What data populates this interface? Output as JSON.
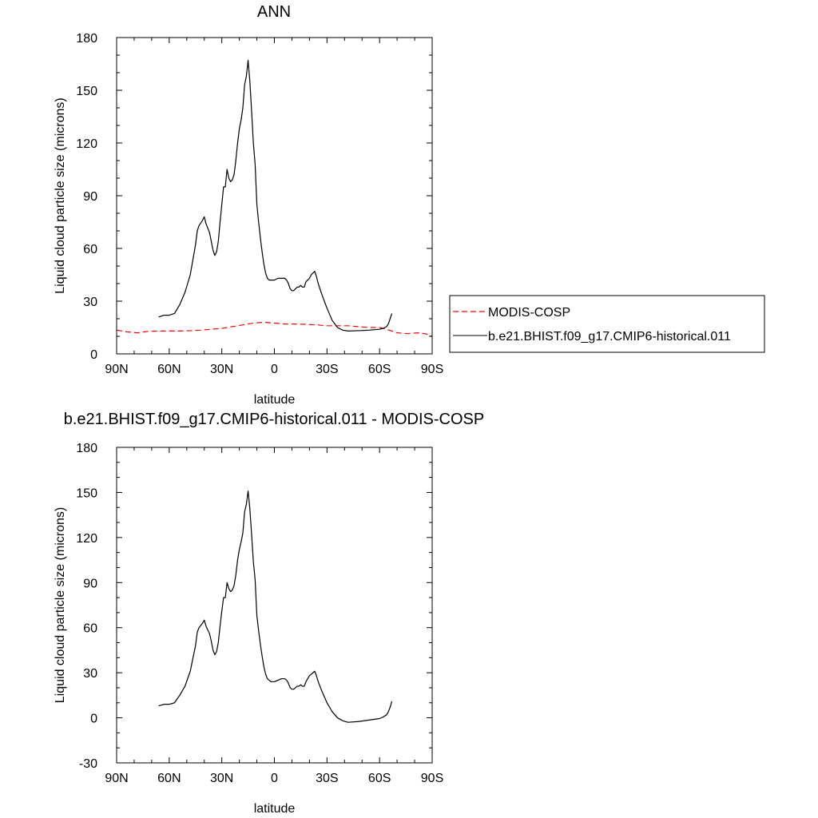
{
  "chart_data": [
    {
      "type": "line",
      "title": "ANN",
      "xlabel": "latitude",
      "ylabel": "Liquid cloud particle size (microns)",
      "xlim": [
        90,
        -90
      ],
      "ylim": [
        0,
        180
      ],
      "xticks": [
        90,
        60,
        30,
        0,
        -30,
        -60,
        -90
      ],
      "xtick_labels": [
        "90N",
        "60N",
        "30N",
        "0",
        "30S",
        "60S",
        "90S"
      ],
      "yticks": [
        0,
        30,
        60,
        90,
        120,
        150,
        180
      ],
      "ytick_labels": [
        "0",
        "30",
        "60",
        "90",
        "120",
        "150",
        "180"
      ],
      "grid": false,
      "legend_position": "right",
      "series": [
        {
          "name": "MODIS-COSP",
          "color": "#ff0000",
          "dash": "dashed",
          "points": [
            [
              90,
              13.5
            ],
            [
              84,
              12.5
            ],
            [
              78,
              12
            ],
            [
              72,
              12.8
            ],
            [
              66,
              13
            ],
            [
              60,
              13
            ],
            [
              54,
              13
            ],
            [
              48,
              13.2
            ],
            [
              42,
              13.5
            ],
            [
              36,
              14
            ],
            [
              30,
              14.5
            ],
            [
              24,
              15.5
            ],
            [
              18,
              16.5
            ],
            [
              12,
              17.5
            ],
            [
              6,
              18
            ],
            [
              0,
              17.5
            ],
            [
              -6,
              17
            ],
            [
              -12,
              17
            ],
            [
              -18,
              16.8
            ],
            [
              -24,
              16.5
            ],
            [
              -30,
              16
            ],
            [
              -36,
              16
            ],
            [
              -42,
              16
            ],
            [
              -48,
              15.5
            ],
            [
              -54,
              15
            ],
            [
              -60,
              15
            ],
            [
              -64,
              14
            ],
            [
              -70,
              12
            ],
            [
              -76,
              11.5
            ],
            [
              -82,
              12
            ],
            [
              -86,
              11.5
            ],
            [
              -90,
              10
            ]
          ]
        },
        {
          "name": "b.e21.BHIST.f09_g17.CMIP6-historical.011",
          "color": "#000000",
          "dash": "solid",
          "points": [
            [
              66,
              21
            ],
            [
              63,
              22
            ],
            [
              60,
              22
            ],
            [
              57,
              23
            ],
            [
              54,
              28
            ],
            [
              51,
              35
            ],
            [
              48,
              45
            ],
            [
              45,
              62
            ],
            [
              44,
              70
            ],
            [
              43,
              73
            ],
            [
              41,
              76
            ],
            [
              40,
              78
            ],
            [
              39,
              74
            ],
            [
              37,
              69
            ],
            [
              36,
              64
            ],
            [
              35,
              59
            ],
            [
              34,
              56
            ],
            [
              33,
              58
            ],
            [
              32,
              64
            ],
            [
              31,
              75
            ],
            [
              30,
              85
            ],
            [
              29,
              95
            ],
            [
              28,
              95
            ],
            [
              27,
              105
            ],
            [
              26,
              100
            ],
            [
              25,
              98
            ],
            [
              24,
              99
            ],
            [
              23,
              102
            ],
            [
              22,
              110
            ],
            [
              21,
              120
            ],
            [
              20,
              128
            ],
            [
              19,
              133
            ],
            [
              18,
              140
            ],
            [
              17,
              153
            ],
            [
              16,
              158
            ],
            [
              15,
              167
            ],
            [
              14,
              155
            ],
            [
              13,
              138
            ],
            [
              12,
              120
            ],
            [
              11,
              108
            ],
            [
              10,
              85
            ],
            [
              9,
              75
            ],
            [
              8,
              66
            ],
            [
              7,
              58
            ],
            [
              6,
              51
            ],
            [
              5,
              46
            ],
            [
              4,
              43
            ],
            [
              3,
              42
            ],
            [
              2,
              42
            ],
            [
              0,
              42
            ],
            [
              -2,
              43
            ],
            [
              -4,
              43
            ],
            [
              -6,
              43
            ],
            [
              -7,
              42
            ],
            [
              -8,
              40
            ],
            [
              -9,
              37
            ],
            [
              -10,
              36
            ],
            [
              -11,
              36
            ],
            [
              -12,
              37
            ],
            [
              -13,
              38
            ],
            [
              -14,
              38
            ],
            [
              -15,
              39
            ],
            [
              -16,
              38
            ],
            [
              -17,
              38
            ],
            [
              -18,
              41
            ],
            [
              -19,
              42
            ],
            [
              -20,
              43
            ],
            [
              -21,
              45
            ],
            [
              -22,
              46
            ],
            [
              -23,
              47
            ],
            [
              -24,
              44
            ],
            [
              -25,
              40
            ],
            [
              -27,
              34
            ],
            [
              -30,
              26
            ],
            [
              -33,
              19
            ],
            [
              -36,
              15
            ],
            [
              -39,
              13.5
            ],
            [
              -42,
              13
            ],
            [
              -48,
              13.2
            ],
            [
              -54,
              13.5
            ],
            [
              -60,
              14
            ],
            [
              -62,
              14.5
            ],
            [
              -64,
              15.5
            ],
            [
              -65,
              17
            ],
            [
              -66,
              20
            ],
            [
              -67,
              23
            ]
          ]
        }
      ]
    },
    {
      "type": "line",
      "title": "b.e21.BHIST.f09_g17.CMIP6-historical.011 - MODIS-COSP",
      "xlabel": "latitude",
      "ylabel": "Liquid cloud particle size (microns)",
      "xlim": [
        90,
        -90
      ],
      "ylim": [
        -30,
        180
      ],
      "xticks": [
        90,
        60,
        30,
        0,
        -30,
        -60,
        -90
      ],
      "xtick_labels": [
        "90N",
        "60N",
        "30N",
        "0",
        "30S",
        "60S",
        "90S"
      ],
      "yticks": [
        -30,
        0,
        30,
        60,
        90,
        120,
        150,
        180
      ],
      "ytick_labels": [
        "-30",
        "0",
        "30",
        "60",
        "90",
        "120",
        "150",
        "180"
      ],
      "grid": false,
      "series": [
        {
          "color": "#000000",
          "dash": "solid",
          "points": [
            [
              66,
              8
            ],
            [
              63,
              9
            ],
            [
              60,
              9
            ],
            [
              57,
              10
            ],
            [
              54,
              15
            ],
            [
              51,
              21
            ],
            [
              48,
              31
            ],
            [
              45,
              48
            ],
            [
              44,
              57
            ],
            [
              43,
              60
            ],
            [
              41,
              63
            ],
            [
              40,
              65
            ],
            [
              39,
              61
            ],
            [
              37,
              56
            ],
            [
              36,
              51
            ],
            [
              35,
              45
            ],
            [
              34,
              42
            ],
            [
              33,
              44
            ],
            [
              32,
              50
            ],
            [
              31,
              61
            ],
            [
              30,
              71
            ],
            [
              29,
              80
            ],
            [
              28,
              80
            ],
            [
              27,
              90
            ],
            [
              26,
              86
            ],
            [
              25,
              84
            ],
            [
              24,
              85
            ],
            [
              23,
              88
            ],
            [
              22,
              95
            ],
            [
              21,
              105
            ],
            [
              20,
              112
            ],
            [
              19,
              117
            ],
            [
              18,
              123
            ],
            [
              17,
              137
            ],
            [
              16,
              142
            ],
            [
              15,
              151
            ],
            [
              14,
              139
            ],
            [
              13,
              122
            ],
            [
              12,
              104
            ],
            [
              11,
              92
            ],
            [
              10,
              68
            ],
            [
              9,
              58
            ],
            [
              8,
              49
            ],
            [
              7,
              41
            ],
            [
              6,
              34
            ],
            [
              5,
              29
            ],
            [
              4,
              26
            ],
            [
              3,
              25
            ],
            [
              2,
              24
            ],
            [
              0,
              24
            ],
            [
              -2,
              25
            ],
            [
              -4,
              26
            ],
            [
              -6,
              26
            ],
            [
              -7,
              25
            ],
            [
              -8,
              23
            ],
            [
              -9,
              20
            ],
            [
              -10,
              19
            ],
            [
              -11,
              19
            ],
            [
              -12,
              20
            ],
            [
              -13,
              21
            ],
            [
              -14,
              21
            ],
            [
              -15,
              22
            ],
            [
              -16,
              21
            ],
            [
              -17,
              21
            ],
            [
              -18,
              24
            ],
            [
              -19,
              26
            ],
            [
              -20,
              28
            ],
            [
              -21,
              29
            ],
            [
              -22,
              30
            ],
            [
              -23,
              31
            ],
            [
              -24,
              28
            ],
            [
              -25,
              24
            ],
            [
              -27,
              18
            ],
            [
              -30,
              10
            ],
            [
              -33,
              4
            ],
            [
              -36,
              0
            ],
            [
              -39,
              -2
            ],
            [
              -42,
              -3
            ],
            [
              -48,
              -2.5
            ],
            [
              -54,
              -1.5
            ],
            [
              -60,
              -0.5
            ],
            [
              -62,
              0.5
            ],
            [
              -64,
              2
            ],
            [
              -65,
              4
            ],
            [
              -66,
              7
            ],
            [
              -67,
              11
            ]
          ]
        }
      ]
    }
  ]
}
